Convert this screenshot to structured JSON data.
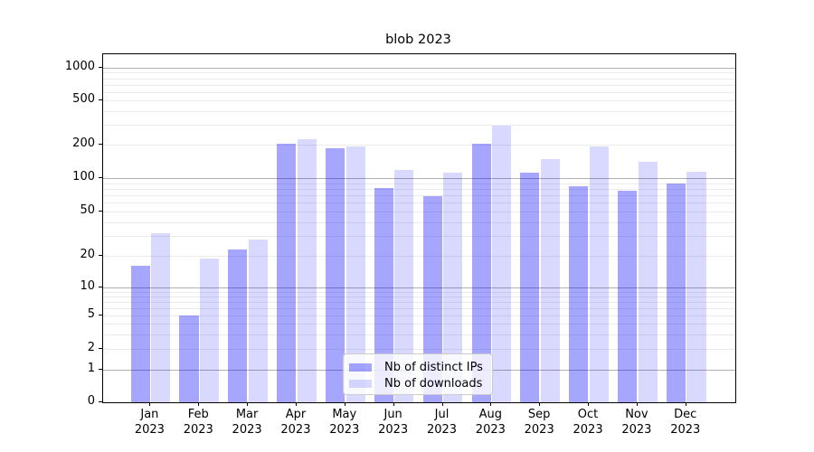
{
  "chart_data": {
    "type": "bar",
    "title": "blob 2023",
    "categories": [
      "Jan",
      "Feb",
      "Mar",
      "Apr",
      "May",
      "Jun",
      "Jul",
      "Aug",
      "Sep",
      "Oct",
      "Nov",
      "Dec"
    ],
    "category_year": "2023",
    "series": [
      {
        "name": "Nb of distinct IPs",
        "color": "#0000ff",
        "alpha": 0.35,
        "values": [
          16,
          5,
          23,
          202,
          187,
          82,
          69,
          202,
          111,
          85,
          77,
          90
        ]
      },
      {
        "name": "Nb of downloads",
        "color": "#0000ff",
        "alpha": 0.15,
        "values": [
          32,
          19,
          28,
          222,
          194,
          119,
          112,
          295,
          148,
          192,
          140,
          113
        ]
      }
    ],
    "yticks": [
      0,
      1,
      2,
      5,
      10,
      20,
      50,
      100,
      200,
      500,
      1000
    ],
    "yscale": "symlog",
    "ylim": [
      0,
      1300
    ],
    "xlabel": "",
    "ylabel": "",
    "grid": "both",
    "legend": {
      "position": "lower center",
      "entries": [
        "Nb of distinct IPs",
        "Nb of downloads"
      ]
    }
  },
  "colors": {
    "major_grid": "#b0b0b0",
    "minor_grid": "#ebebeb",
    "spine": "#000000",
    "legend_border": "#cccccc",
    "bar_dark_composite": "#a6a6ff",
    "bar_light_composite": "#d9d9ff"
  }
}
